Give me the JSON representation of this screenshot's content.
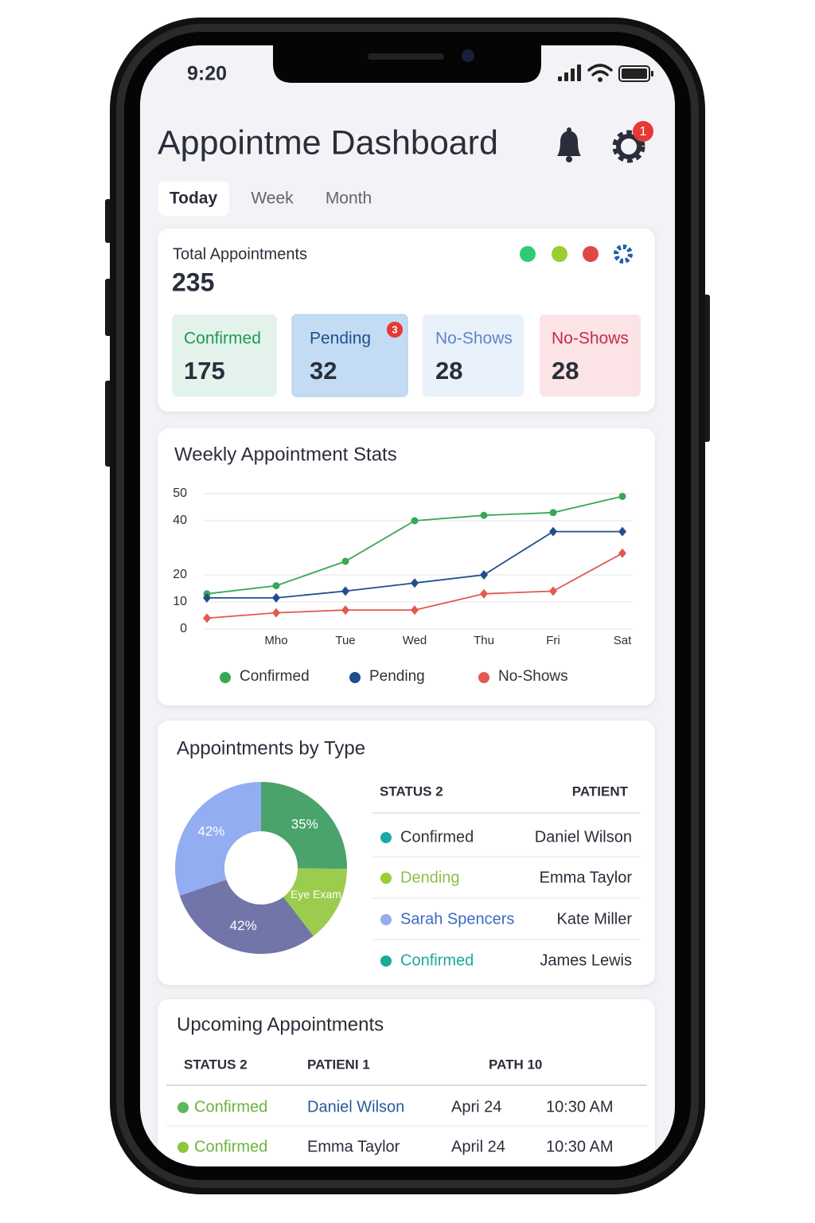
{
  "status_bar": {
    "time": "9:20"
  },
  "header": {
    "title": "Appointme Dashboard",
    "badge": "1"
  },
  "tabs": [
    "Today",
    "Week",
    "Month"
  ],
  "summary": {
    "label": "Total Appointments",
    "total": "235",
    "cards": [
      {
        "label": "Confirmed",
        "value": "175"
      },
      {
        "label": "Pending",
        "value": "32",
        "badge": "3"
      },
      {
        "label": "No-Shows",
        "value": "28"
      },
      {
        "label": "No-Shows",
        "value": "28"
      }
    ]
  },
  "chart_data": [
    {
      "type": "line",
      "title": "Weekly Appointment Stats",
      "categories": [
        null,
        "Mho",
        "Tue",
        "Wed",
        "Thu",
        "Fri",
        "Sat"
      ],
      "series": [
        {
          "name": "Confirmed",
          "color": "#3aa757",
          "marker": "circle",
          "values": [
            13,
            16,
            25,
            40,
            42,
            43,
            49
          ]
        },
        {
          "name": "Pending",
          "color": "#1f4e8c",
          "marker": "diamond",
          "values": [
            11.5,
            11.5,
            14,
            17,
            20,
            36,
            36
          ]
        },
        {
          "name": "No-Shows",
          "color": "#e05a4f",
          "marker": "diamond",
          "values": [
            4,
            6,
            7,
            7,
            13,
            14,
            28
          ]
        }
      ],
      "ylim": [
        0,
        50
      ],
      "yticks": [
        0,
        10,
        20,
        40,
        50
      ],
      "grid": true,
      "legend": "bottom"
    },
    {
      "type": "pie",
      "title": "Appointments by Type",
      "categories": [
        null,
        "Eye Exam",
        null,
        null
      ],
      "values": [
        35,
        20,
        42,
        42
      ],
      "value_labels": [
        "35%",
        null,
        "42%",
        "42%"
      ],
      "colors": [
        "#4aa36a",
        "#9ccc4e",
        "#7275a8",
        "#93adf2"
      ],
      "donut": true
    }
  ],
  "type_table": {
    "headers": [
      "STATUS 2",
      "PATIENT"
    ],
    "rows": [
      [
        "Confirmed",
        "Daniel Wilson"
      ],
      [
        "Dending",
        "Emma Taylor"
      ],
      [
        "Sarah Spencers",
        "Kate Miller"
      ],
      [
        "Confirmed",
        "James Lewis"
      ]
    ]
  },
  "upcoming": {
    "title": "Upcoming Appointments",
    "headers": [
      "STATUS 2",
      "PATIENI 1",
      "PATH 10"
    ],
    "rows": [
      [
        "Confirmed",
        "Daniel Wilson",
        "Apri 24",
        "10:30 AM"
      ],
      [
        "Confirmed",
        "Emma Taylor",
        "April 24",
        "10:30 AM"
      ]
    ]
  }
}
